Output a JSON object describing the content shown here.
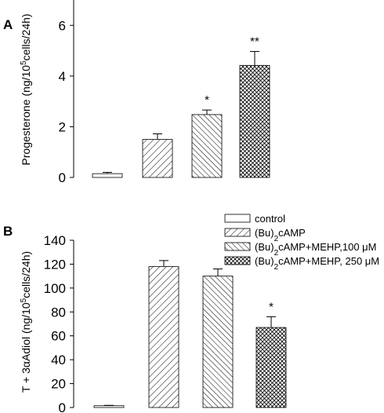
{
  "chart_data": [
    {
      "type": "bar",
      "panel_label": "A",
      "ylabel": "Progesterone (ng/10^5 cells/24h)",
      "ylabel_parts": {
        "pre": "Progesterone (ng/10",
        "sup": "5",
        "post": "cells/24h)"
      },
      "ylim": [
        0,
        7
      ],
      "yticks": [
        "0",
        "2",
        "4",
        "6"
      ],
      "categories": [
        "control",
        "(Bu)2cAMP",
        "(Bu)2cAMP+MEHP,100 μM",
        "(Bu)2cAMP+MEHP, 250 μM"
      ],
      "values": [
        0.15,
        1.5,
        2.48,
        4.42
      ],
      "errors": [
        0.05,
        0.22,
        0.18,
        0.55
      ],
      "annotations": [
        "",
        "",
        "*",
        "**"
      ]
    },
    {
      "type": "bar",
      "panel_label": "B",
      "ylabel": "T + 3αAdiol (ng/10^5 cells/24h)",
      "ylabel_parts": {
        "pre": "T + 3αAdiol (ng/10",
        "sup": "5",
        "post": "cells/24h)"
      },
      "ylim": [
        0,
        140
      ],
      "yticks": [
        "0",
        "20",
        "40",
        "60",
        "80",
        "100",
        "120",
        "140"
      ],
      "categories": [
        "control",
        "(Bu)2cAMP",
        "(Bu)2cAMP+MEHP,100 μM",
        "(Bu)2cAMP+MEHP, 250 μM"
      ],
      "values": [
        1.5,
        118,
        110,
        67
      ],
      "errors": [
        0.3,
        5,
        6,
        9
      ],
      "annotations": [
        "",
        "",
        "",
        "*"
      ],
      "legend_position": "top-right"
    }
  ],
  "legend": [
    {
      "pre": "control",
      "sub": "",
      "post": ""
    },
    {
      "pre": "(Bu)",
      "sub": "2",
      "post": "cAMP"
    },
    {
      "pre": "(Bu)",
      "sub": "2",
      "post": "cAMP+MEHP,100 μM"
    },
    {
      "pre": "(Bu)",
      "sub": "2",
      "post": "cAMP+MEHP, 250 μM"
    }
  ],
  "colors": {
    "ink": "#000000",
    "bar_fill": "#ffffff"
  }
}
